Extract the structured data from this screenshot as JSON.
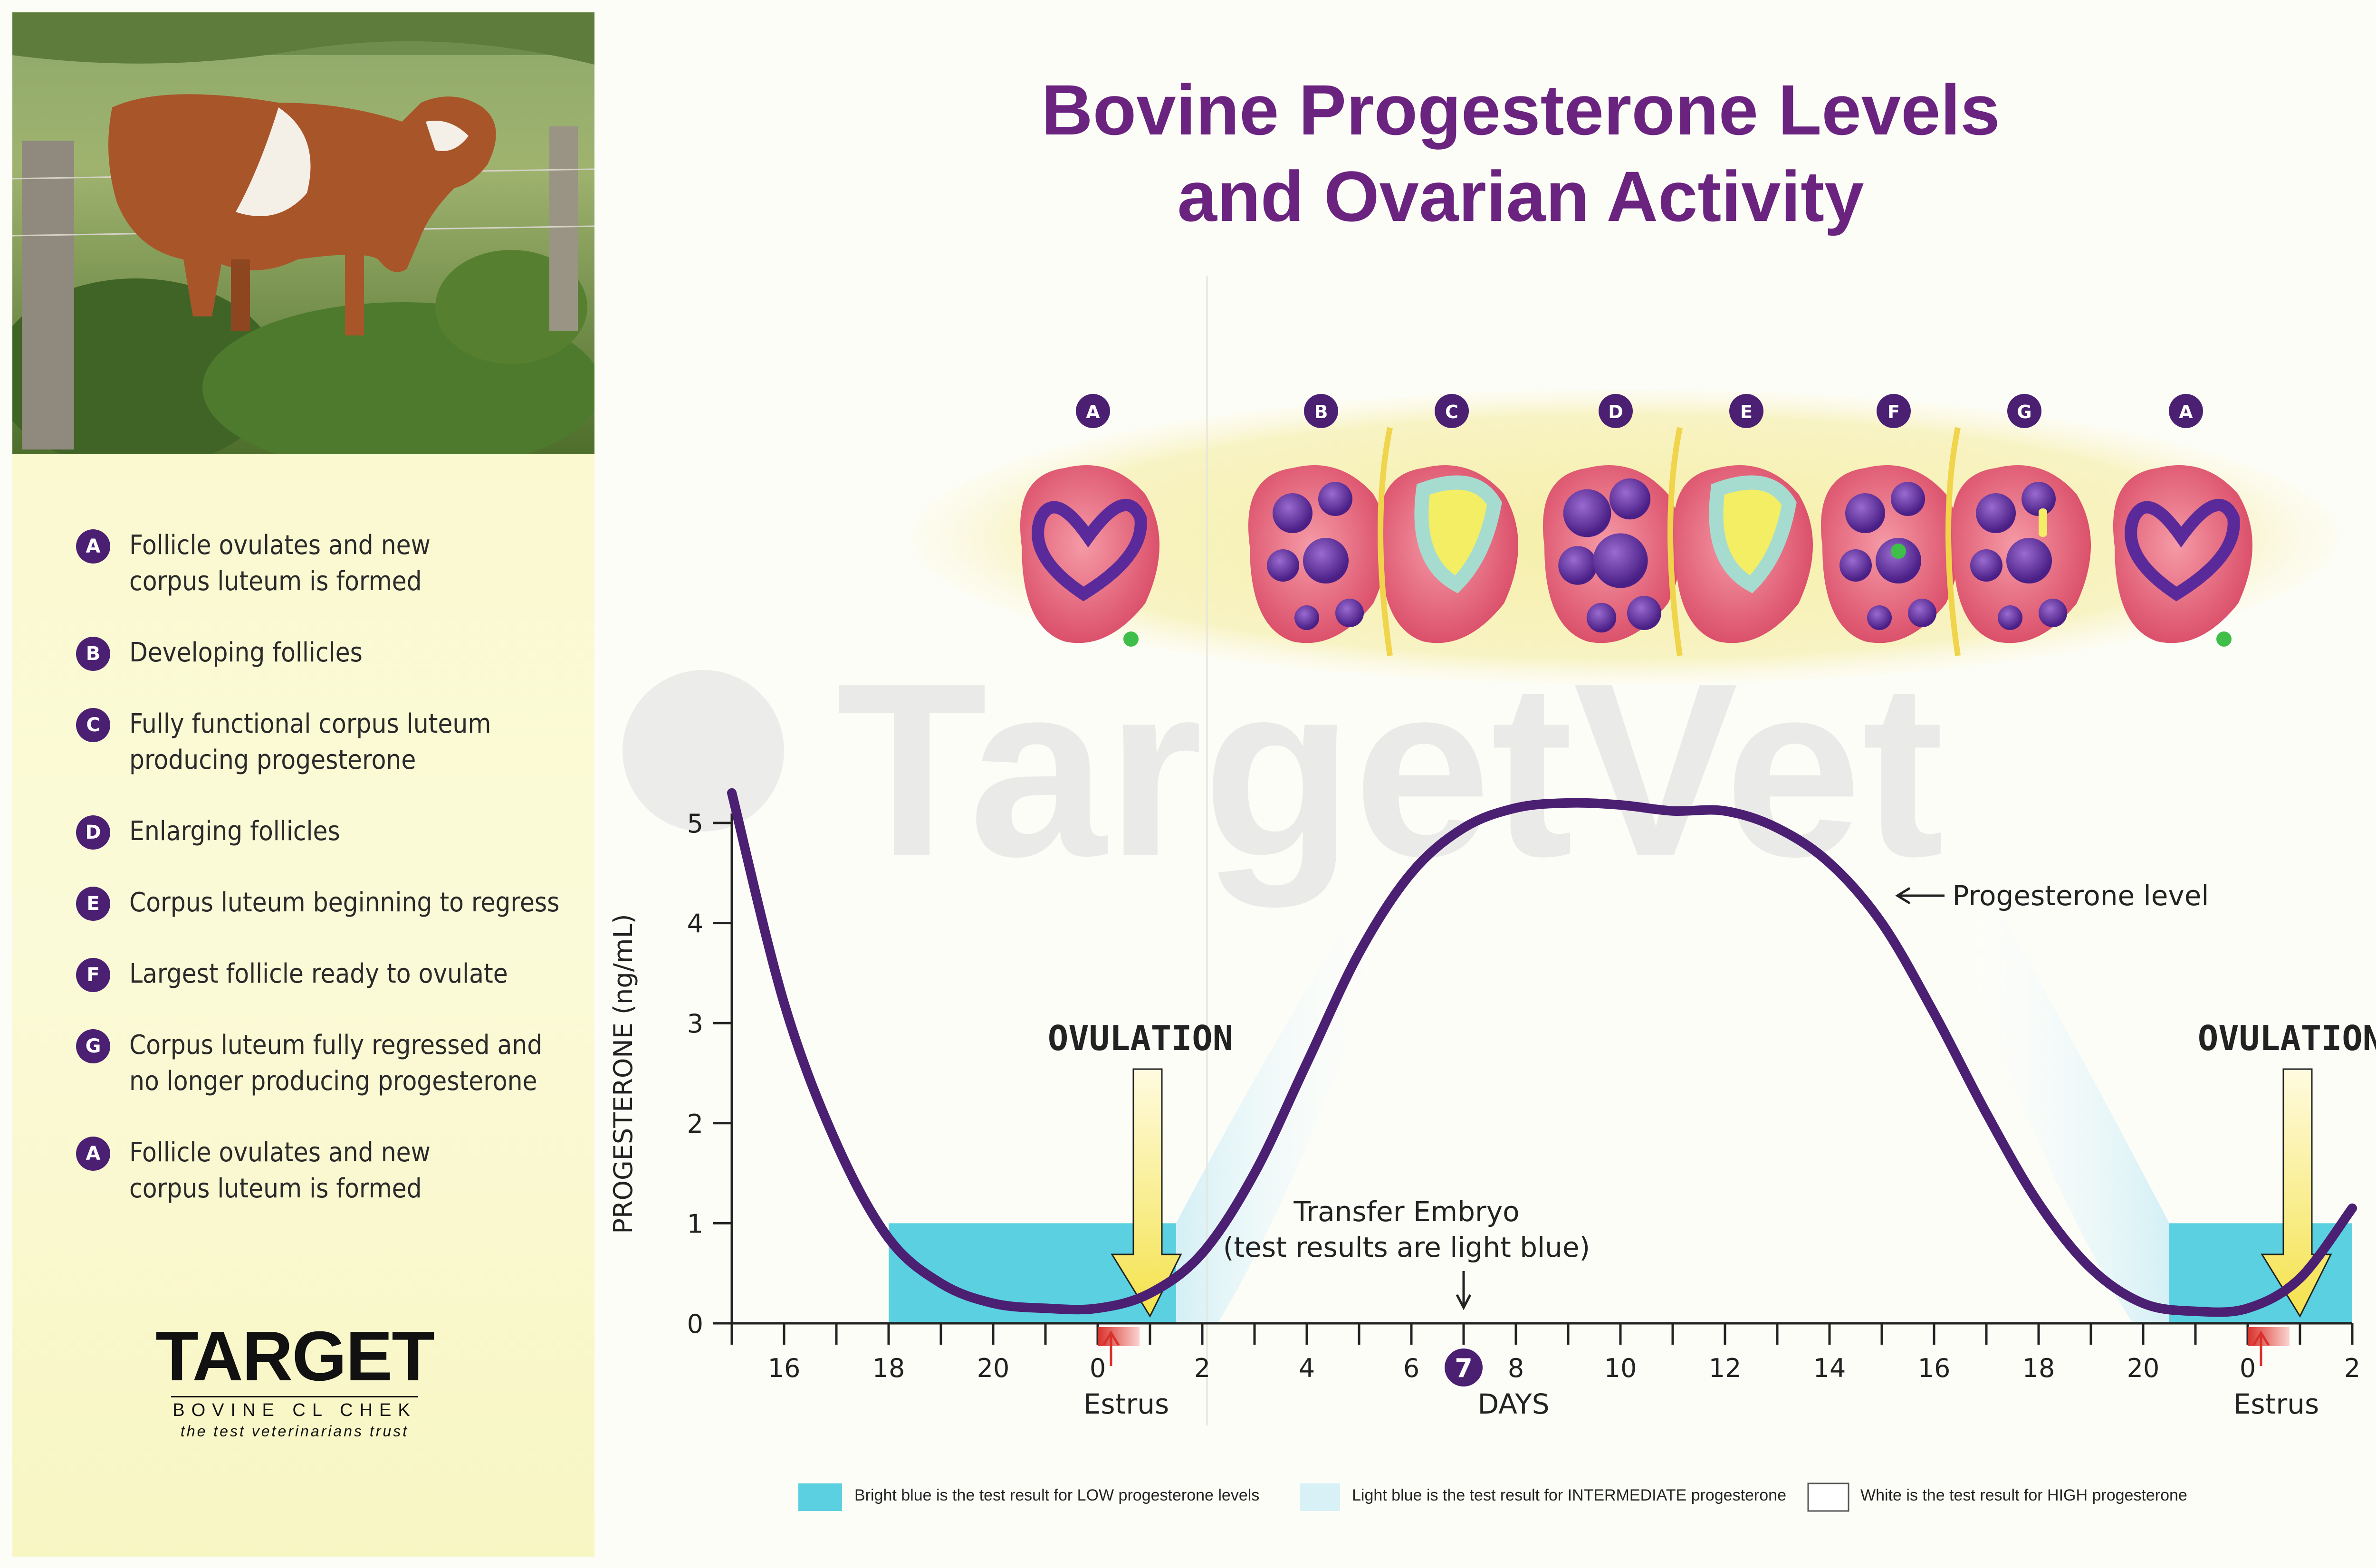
{
  "legend": {
    "items": [
      {
        "letter": "A",
        "text": "Follicle ovulates and new\ncorpus luteum is formed"
      },
      {
        "letter": "B",
        "text": "Developing follicles"
      },
      {
        "letter": "C",
        "text": "Fully functional corpus luteum\nproducing progesterone"
      },
      {
        "letter": "D",
        "text": "Enlarging follicles"
      },
      {
        "letter": "E",
        "text": "Corpus luteum beginning to regress"
      },
      {
        "letter": "F",
        "text": "Largest follicle ready to ovulate"
      },
      {
        "letter": "G",
        "text": "Corpus luteum fully regressed and\nno longer producing progesterone"
      },
      {
        "letter": "A",
        "text": "Follicle ovulates and new\ncorpus luteum is formed"
      }
    ]
  },
  "brand": {
    "name": "TARGET",
    "subtitle": "BOVINE CL CHEK",
    "tagline": "the test veterinarians trust",
    "watermark": "TargetVet"
  },
  "stages": [
    "A",
    "B",
    "C",
    "D",
    "E",
    "F",
    "G",
    "A"
  ],
  "footer": {
    "low": "Bright blue is the test result for LOW progesterone levels",
    "intermediate": "Light blue is the test result for INTERMEDIATE progesterone",
    "high": "White is the test result for HIGH progesterone"
  },
  "colors": {
    "title": "#6b2380",
    "curve": "#4b1f72",
    "bright_blue": "#5bd0e0",
    "light_blue": "#d8f1f6",
    "badge": "#4b1f72",
    "panel": "#f9f8c9",
    "estrus": "#d9312b"
  },
  "chart_data": {
    "type": "line",
    "title": "Bovine Progesterone Levels\nand Ovarian Activity",
    "xlabel": "DAYS",
    "ylabel": "PROGESTERONE (ng/mL)",
    "ylim": [
      0,
      5
    ],
    "yticks": [
      "0",
      "1",
      "2",
      "3",
      "4",
      "5"
    ],
    "xticks": [
      "16",
      "18",
      "20",
      "0",
      "2",
      "4",
      "6",
      "7",
      "8",
      "10",
      "12",
      "14",
      "16",
      "18",
      "20",
      "0",
      "2"
    ],
    "highlight_tick": "7",
    "series": [
      {
        "name": "Progesterone level",
        "x": [
          "15",
          "16",
          "17",
          "18",
          "19",
          "20",
          "21",
          "0",
          "1",
          "2",
          "3",
          "4",
          "5",
          "6",
          "7",
          "8",
          "9",
          "10",
          "11",
          "12",
          "13",
          "14",
          "15",
          "16",
          "17",
          "18",
          "19",
          "20",
          "21",
          "0",
          "1",
          "2"
        ],
        "values": [
          5.3,
          3.2,
          1.8,
          0.85,
          0.4,
          0.2,
          0.15,
          0.15,
          0.3,
          0.7,
          1.5,
          2.6,
          3.7,
          4.5,
          4.95,
          5.15,
          5.2,
          5.18,
          5.12,
          5.12,
          4.95,
          4.6,
          4.0,
          3.1,
          2.1,
          1.2,
          0.55,
          0.2,
          0.12,
          0.15,
          0.45,
          1.15
        ]
      }
    ],
    "annotations": {
      "ovulation": "OVULATION",
      "estrus": "Estrus",
      "transfer_line1": "Transfer Embryo",
      "transfer_line2": "(test results are light blue)",
      "progesterone_label": "Progesterone level"
    },
    "low_zone_days": [
      [
        18,
        1.0
      ],
      [
        19,
        2.0
      ]
    ],
    "low_zone_max": 1
  }
}
